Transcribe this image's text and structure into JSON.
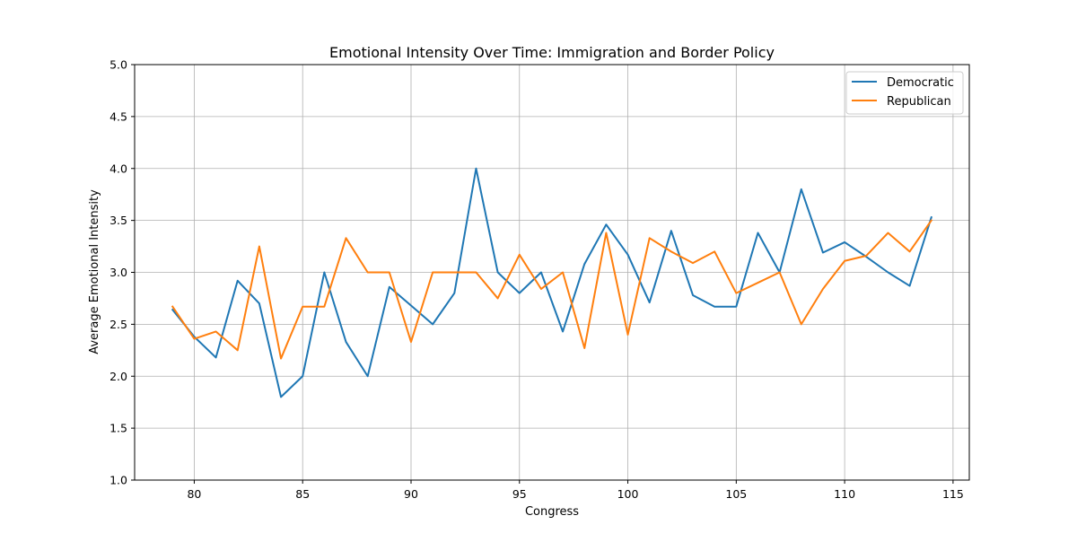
{
  "chart_data": {
    "type": "line",
    "title": "Emotional Intensity Over Time: Immigration and Border Policy",
    "xlabel": "Congress",
    "ylabel": "Average Emotional Intensity",
    "xlim": [
      77.25,
      115.75
    ],
    "ylim": [
      1.0,
      5.0
    ],
    "xticks": [
      80,
      85,
      90,
      95,
      100,
      105,
      110,
      115
    ],
    "yticks": [
      1.0,
      1.5,
      2.0,
      2.5,
      3.0,
      3.5,
      4.0,
      4.5,
      5.0
    ],
    "ytick_labels": [
      "1.0",
      "1.5",
      "2.0",
      "2.5",
      "3.0",
      "3.5",
      "4.0",
      "4.5",
      "5.0"
    ],
    "grid": true,
    "legend_position": "top-right",
    "x": [
      79,
      80,
      81,
      82,
      83,
      84,
      85,
      86,
      87,
      88,
      89,
      90,
      91,
      92,
      93,
      94,
      95,
      96,
      97,
      98,
      99,
      100,
      101,
      102,
      103,
      104,
      105,
      106,
      107,
      108,
      109,
      110,
      111,
      112,
      113,
      114
    ],
    "series": [
      {
        "name": "Democratic",
        "color": "#1f77b4",
        "values": [
          2.64,
          2.38,
          2.18,
          2.92,
          2.7,
          1.8,
          2.0,
          3.0,
          2.33,
          2.0,
          2.86,
          2.68,
          2.5,
          2.8,
          4.0,
          3.0,
          2.8,
          3.0,
          2.43,
          3.08,
          3.46,
          3.17,
          2.71,
          3.4,
          2.78,
          2.67,
          2.67,
          3.38,
          3.0,
          3.8,
          3.19,
          3.29,
          3.15,
          3.0,
          2.87,
          3.53
        ]
      },
      {
        "name": "Republican",
        "color": "#ff7f0e",
        "values": [
          2.67,
          2.36,
          2.43,
          2.25,
          3.25,
          2.17,
          2.67,
          2.67,
          3.33,
          3.0,
          3.0,
          2.33,
          3.0,
          3.0,
          3.0,
          2.75,
          3.17,
          2.84,
          3.0,
          2.27,
          3.38,
          2.4,
          3.33,
          3.2,
          3.09,
          3.2,
          2.8,
          2.9,
          3.0,
          2.5,
          2.84,
          3.11,
          3.16,
          3.38,
          3.2,
          3.5
        ]
      }
    ]
  }
}
